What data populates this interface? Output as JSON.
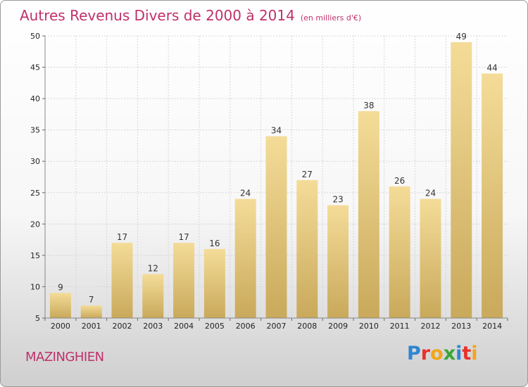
{
  "chart_data": {
    "type": "bar",
    "title": "Autres Revenus Divers de 2000 à 2014",
    "subtitle": "(en milliers d'€)",
    "categories": [
      "2000",
      "2001",
      "2002",
      "2003",
      "2004",
      "2005",
      "2006",
      "2007",
      "2008",
      "2009",
      "2010",
      "2011",
      "2012",
      "2013",
      "2014"
    ],
    "values": [
      9,
      7,
      17,
      12,
      17,
      16,
      24,
      34,
      27,
      23,
      38,
      26,
      24,
      49,
      44
    ],
    "ylim": [
      5,
      50
    ],
    "yticks": [
      5,
      10,
      15,
      20,
      25,
      30,
      35,
      40,
      45,
      50
    ],
    "grid": true,
    "bar_color": "#e8c77a"
  },
  "location_label": "MAZINGHIEN",
  "logo": {
    "text": "Proxiti",
    "letters": [
      {
        "ch": "P",
        "color": "#2e86d1"
      },
      {
        "ch": "r",
        "color": "#e8312a"
      },
      {
        "ch": "o",
        "color": "#f2a516"
      },
      {
        "ch": "x",
        "color": "#3aa637"
      },
      {
        "ch": "i",
        "color": "#2e86d1"
      },
      {
        "ch": "t",
        "color": "#e8312a"
      },
      {
        "ch": "i",
        "color": "#f2a516"
      }
    ]
  }
}
